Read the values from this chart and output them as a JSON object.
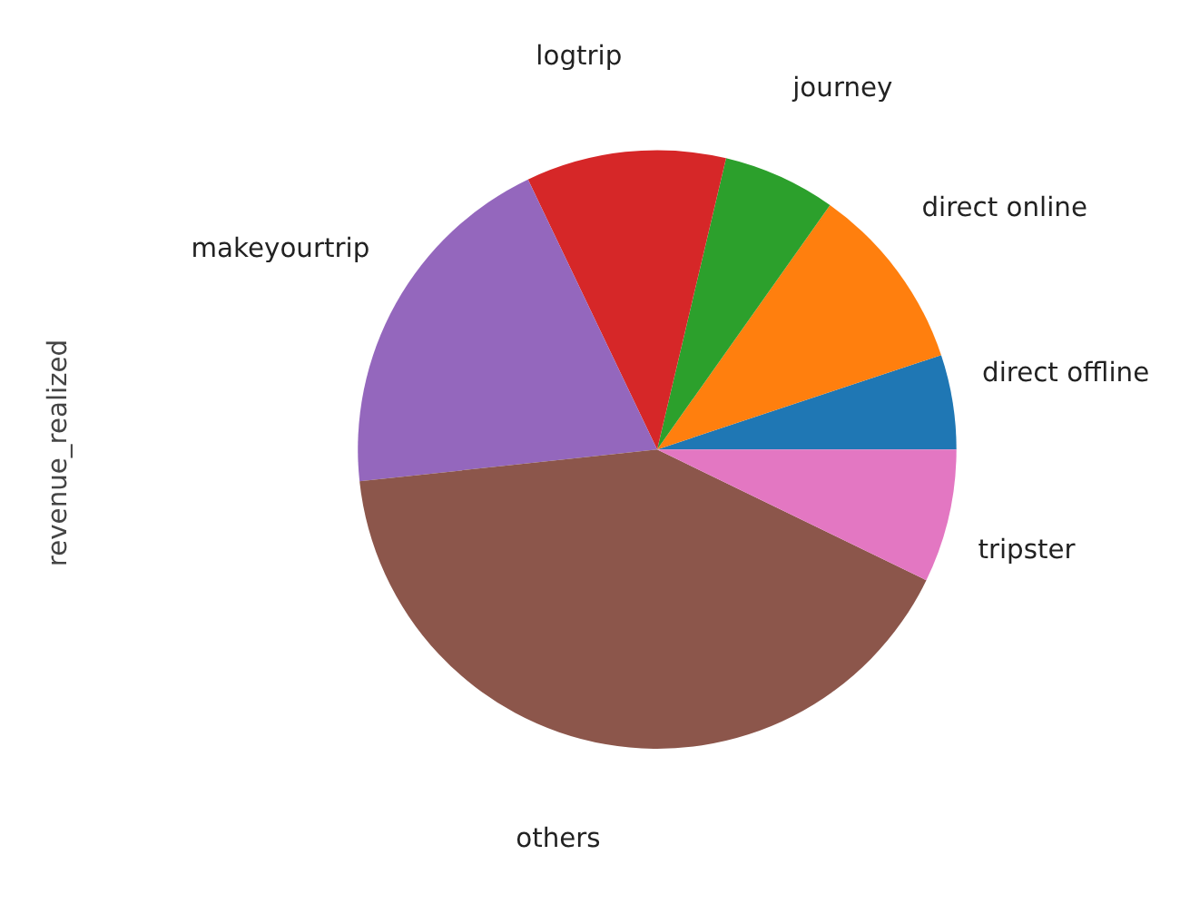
{
  "chart_data": {
    "type": "pie",
    "ylabel": "revenue_realized",
    "categories": [
      "direct offline",
      "direct online",
      "journey",
      "logtrip",
      "makeyourtrip",
      "others",
      "tripster"
    ],
    "values": [
      5.1,
      10.1,
      6.1,
      10.8,
      19.6,
      41.1,
      7.2
    ],
    "colors": [
      "#1f77b4",
      "#ff7f0e",
      "#2ca02c",
      "#d62728",
      "#9467bd",
      "#8c564b",
      "#e377c2"
    ]
  }
}
